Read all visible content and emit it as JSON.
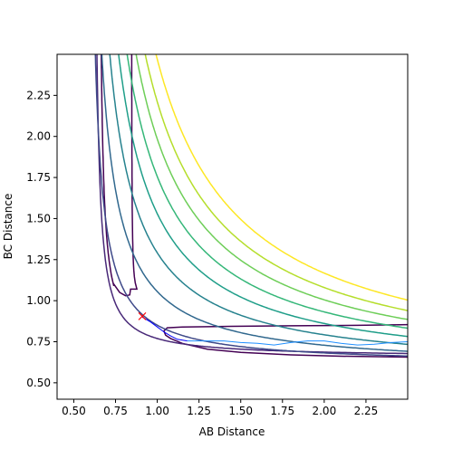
{
  "chart_data": {
    "type": "line",
    "subtype": "contour",
    "title": "",
    "xlabel": "AB Distance",
    "ylabel": "BC Distance",
    "xlim": [
      0.4,
      2.5
    ],
    "ylim": [
      0.4,
      2.5
    ],
    "xticks": [
      0.5,
      0.75,
      1.0,
      1.25,
      1.5,
      1.75,
      2.0,
      2.25
    ],
    "xtick_labels": [
      "0.50",
      "0.75",
      "1.00",
      "1.25",
      "1.50",
      "1.75",
      "2.00",
      "2.25"
    ],
    "yticks": [
      0.5,
      0.75,
      1.0,
      1.25,
      1.5,
      1.75,
      2.0,
      2.25
    ],
    "ytick_labels": [
      "0.50",
      "0.75",
      "1.00",
      "1.25",
      "1.50",
      "1.75",
      "2.00",
      "2.25"
    ],
    "grid": false,
    "legend": "none",
    "contours": [
      {
        "level": 1,
        "color": "#440154",
        "type": "channel",
        "a": 0.85,
        "b": 1.2,
        "tip": 1.03,
        "n": 0.03
      },
      {
        "level": 2,
        "color": "#482878",
        "type": "L",
        "a": 0.615,
        "b": 0.655,
        "k": 0.21
      },
      {
        "level": 3,
        "color": "#3e4989",
        "type": "L",
        "a": 0.575,
        "b": 0.61,
        "k": 0.32
      },
      {
        "level": 4,
        "color": "#31688e",
        "type": "L",
        "a": 0.56,
        "b": 0.585,
        "k": 0.455
      },
      {
        "level": 5,
        "color": "#26828e",
        "type": "L",
        "a": 0.545,
        "b": 0.565,
        "k": 0.575
      },
      {
        "level": 6,
        "color": "#1f9e89",
        "type": "L",
        "a": 0.535,
        "b": 0.55,
        "k": 0.675
      },
      {
        "level": 7,
        "color": "#35b779",
        "type": "L",
        "a": 0.525,
        "b": 0.54,
        "k": 0.76
      },
      {
        "level": 8,
        "color": "#6ece58",
        "type": "L",
        "a": 0.515,
        "b": 0.53,
        "k": 0.84
      },
      {
        "level": 9,
        "color": "#b5de2b",
        "type": "L",
        "a": 0.505,
        "b": 0.52,
        "k": 0.915
      },
      {
        "level": 10,
        "color": "#fde725",
        "type": "L",
        "a": 0.495,
        "b": 0.51,
        "k": 0.995
      }
    ],
    "trajectory": {
      "color": "#1f77b4",
      "segments": [
        {
          "color": "#0000ff",
          "x": [
            0.91,
            0.96,
            1.0,
            1.04,
            1.08,
            1.12,
            1.18
          ],
          "y": [
            0.9,
            0.87,
            0.84,
            0.81,
            0.785,
            0.765,
            0.755
          ]
        },
        {
          "color": "#1f8fff",
          "x": [
            1.18,
            1.3,
            1.4,
            1.5,
            1.6,
            1.7,
            1.8,
            1.9,
            2.0,
            2.1,
            2.2,
            2.3,
            2.4,
            2.5
          ],
          "y": [
            0.755,
            0.755,
            0.755,
            0.745,
            0.74,
            0.73,
            0.745,
            0.755,
            0.755,
            0.74,
            0.73,
            0.735,
            0.745,
            0.75
          ]
        }
      ]
    },
    "marker": {
      "x": 0.91,
      "y": 0.905,
      "color": "#ff0000",
      "symbol": "x"
    }
  }
}
